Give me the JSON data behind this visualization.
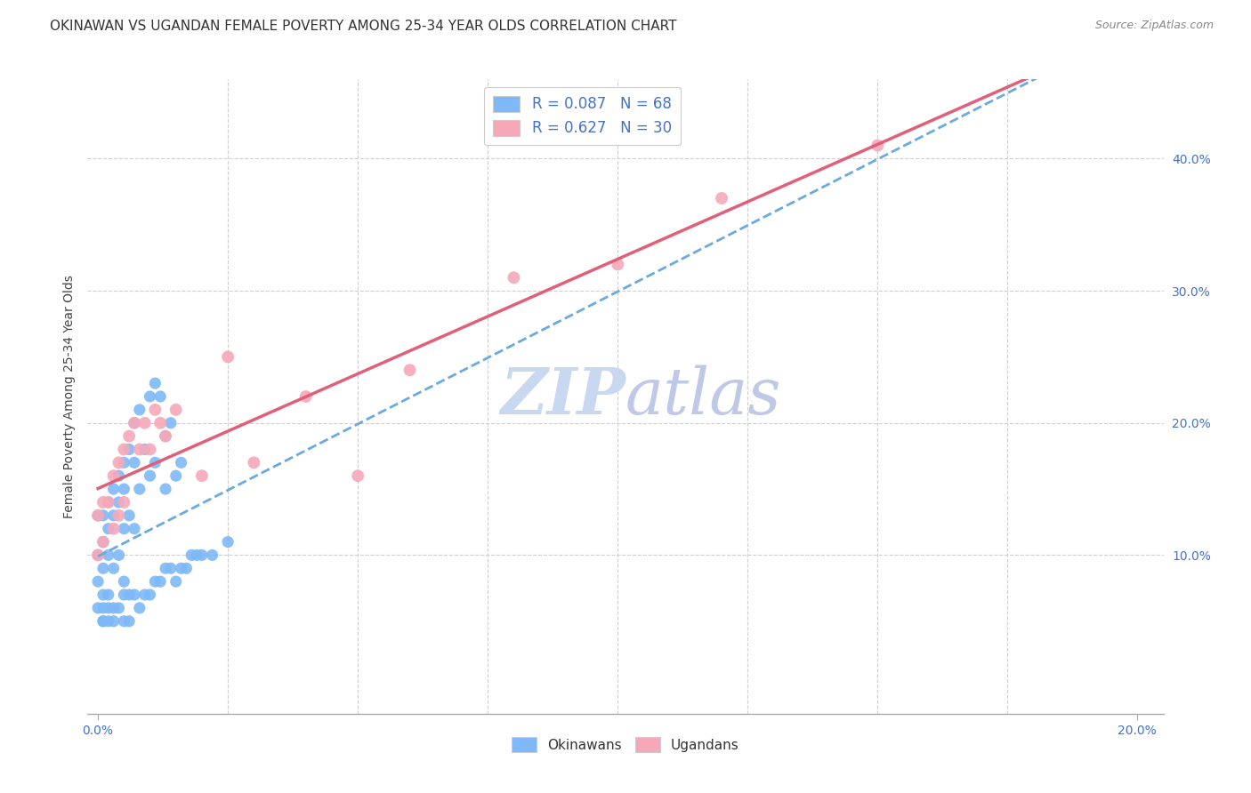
{
  "title": "OKINAWAN VS UGANDAN FEMALE POVERTY AMONG 25-34 YEAR OLDS CORRELATION CHART",
  "source": "Source: ZipAtlas.com",
  "ylabel": "Female Poverty Among 25-34 Year Olds",
  "xlim": [
    -0.002,
    0.205
  ],
  "ylim": [
    -0.02,
    0.46
  ],
  "xtick_positions": [
    0.0,
    0.2
  ],
  "xticklabels": [
    "0.0%",
    "20.0%"
  ],
  "ytick_positions": [
    0.1,
    0.2,
    0.3,
    0.4
  ],
  "yticklabels": [
    "10.0%",
    "20.0%",
    "30.0%",
    "40.0%"
  ],
  "title_fontsize": 11,
  "source_fontsize": 9,
  "axis_label_fontsize": 10,
  "tick_fontsize": 10,
  "legend_label_okinawan": "R = 0.087   N = 68",
  "legend_label_ugandan": "R = 0.627   N = 30",
  "okinawan_color": "#7eb8f7",
  "ugandan_color": "#f7a8b8",
  "okinawan_line_color": "#6aaae0",
  "ugandan_line_color": "#e0607a",
  "watermark_zip_color": "#c8d8f0",
  "watermark_atlas_color": "#c0c8e8",
  "watermark_fontsize": 52,
  "background_color": "#ffffff",
  "grid_color": "#d0d0d0",
  "tick_color": "#4472c4",
  "okinawan_x": [
    0.0,
    0.0,
    0.0,
    0.001,
    0.001,
    0.001,
    0.001,
    0.001,
    0.002,
    0.002,
    0.002,
    0.002,
    0.003,
    0.003,
    0.003,
    0.004,
    0.004,
    0.004,
    0.005,
    0.005,
    0.005,
    0.005,
    0.006,
    0.006,
    0.007,
    0.007,
    0.007,
    0.008,
    0.008,
    0.009,
    0.01,
    0.01,
    0.011,
    0.011,
    0.012,
    0.013,
    0.013,
    0.014,
    0.015,
    0.016,
    0.0,
    0.001,
    0.001,
    0.002,
    0.002,
    0.003,
    0.003,
    0.004,
    0.005,
    0.005,
    0.006,
    0.006,
    0.007,
    0.008,
    0.009,
    0.01,
    0.011,
    0.012,
    0.013,
    0.014,
    0.015,
    0.016,
    0.017,
    0.018,
    0.019,
    0.02,
    0.022,
    0.025
  ],
  "okinawan_y": [
    0.13,
    0.1,
    0.08,
    0.13,
    0.11,
    0.09,
    0.07,
    0.05,
    0.14,
    0.12,
    0.1,
    0.07,
    0.15,
    0.13,
    0.09,
    0.16,
    0.14,
    0.1,
    0.17,
    0.15,
    0.12,
    0.08,
    0.18,
    0.13,
    0.2,
    0.17,
    0.12,
    0.21,
    0.15,
    0.18,
    0.22,
    0.16,
    0.23,
    0.17,
    0.22,
    0.19,
    0.15,
    0.2,
    0.16,
    0.17,
    0.06,
    0.06,
    0.05,
    0.06,
    0.05,
    0.06,
    0.05,
    0.06,
    0.07,
    0.05,
    0.07,
    0.05,
    0.07,
    0.06,
    0.07,
    0.07,
    0.08,
    0.08,
    0.09,
    0.09,
    0.08,
    0.09,
    0.09,
    0.1,
    0.1,
    0.1,
    0.1,
    0.11
  ],
  "ugandan_x": [
    0.0,
    0.0,
    0.001,
    0.001,
    0.002,
    0.003,
    0.003,
    0.004,
    0.004,
    0.005,
    0.005,
    0.006,
    0.007,
    0.008,
    0.009,
    0.01,
    0.011,
    0.012,
    0.013,
    0.015,
    0.02,
    0.025,
    0.03,
    0.04,
    0.05,
    0.06,
    0.08,
    0.1,
    0.12,
    0.15
  ],
  "ugandan_y": [
    0.13,
    0.1,
    0.14,
    0.11,
    0.14,
    0.16,
    0.12,
    0.17,
    0.13,
    0.18,
    0.14,
    0.19,
    0.2,
    0.18,
    0.2,
    0.18,
    0.21,
    0.2,
    0.19,
    0.21,
    0.16,
    0.25,
    0.17,
    0.22,
    0.16,
    0.24,
    0.31,
    0.32,
    0.37,
    0.41
  ]
}
